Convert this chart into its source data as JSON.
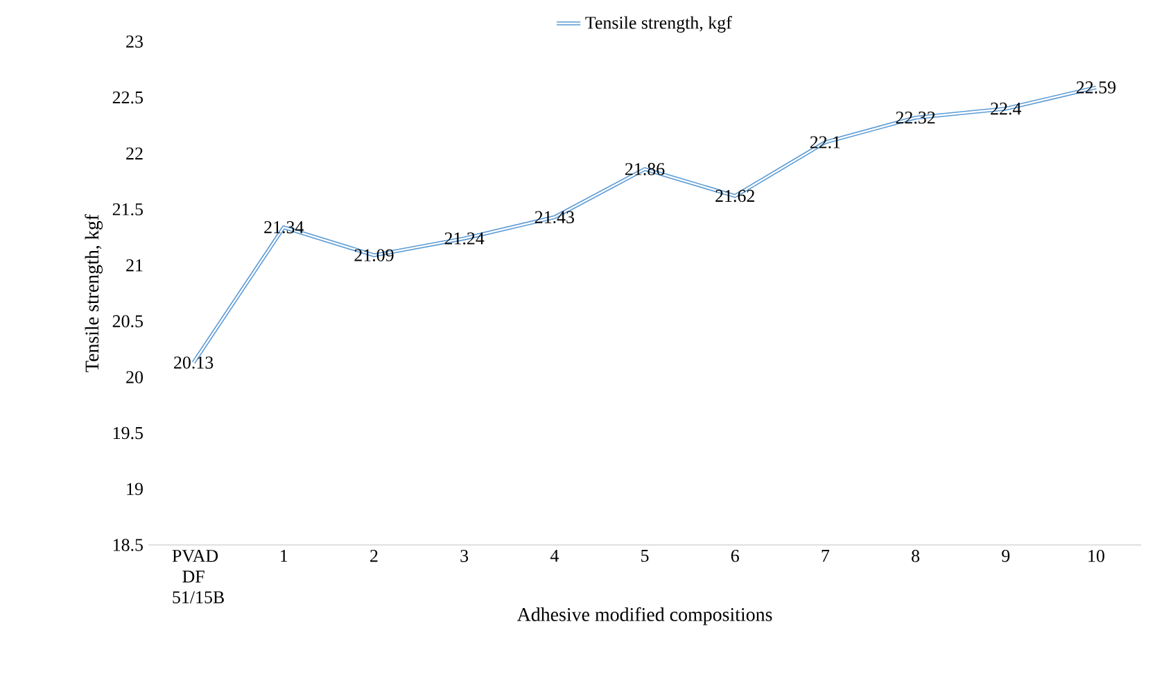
{
  "chart_data": {
    "type": "line",
    "xlabel": "Adhesive modified compositions",
    "ylabel": "Tensile strength, kgf",
    "categories": [
      "PVAD DF 51/15B",
      "1",
      "2",
      "3",
      "4",
      "5",
      "6",
      "7",
      "8",
      "9",
      "10"
    ],
    "series": [
      {
        "name": "Tensile strength, kgf",
        "color": "#5b9bd5",
        "values": [
          20.13,
          21.34,
          21.09,
          21.24,
          21.43,
          21.86,
          21.62,
          22.1,
          22.32,
          22.4,
          22.59
        ]
      }
    ],
    "ylim": [
      18.5,
      23
    ],
    "yticks": [
      18.5,
      19,
      19.5,
      20,
      20.5,
      21,
      21.5,
      22,
      22.5,
      23
    ],
    "data_labels": true,
    "legend": "top",
    "grid": false
  }
}
